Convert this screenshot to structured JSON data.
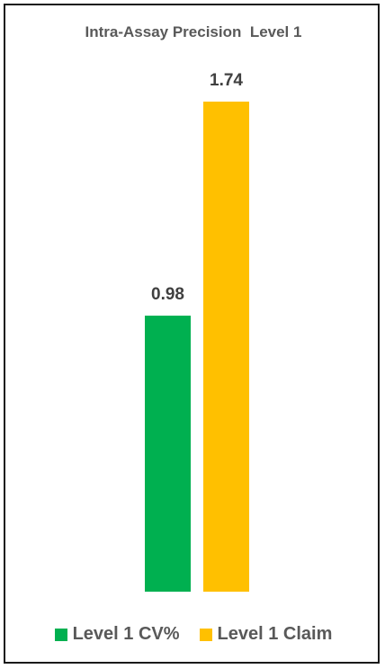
{
  "chart_data": {
    "type": "bar",
    "title": "Intra-Assay Precision  Level 1",
    "categories": [
      "Level 1 CV%",
      "Level 1 Claim"
    ],
    "values": [
      0.98,
      1.74
    ],
    "value_labels": [
      "0.98",
      "1.74"
    ],
    "colors": [
      "#00b050",
      "#ffc000"
    ],
    "ylim": [
      0,
      1.74
    ],
    "grid": false,
    "legend": "bottom",
    "xlabel": "",
    "ylabel": ""
  }
}
